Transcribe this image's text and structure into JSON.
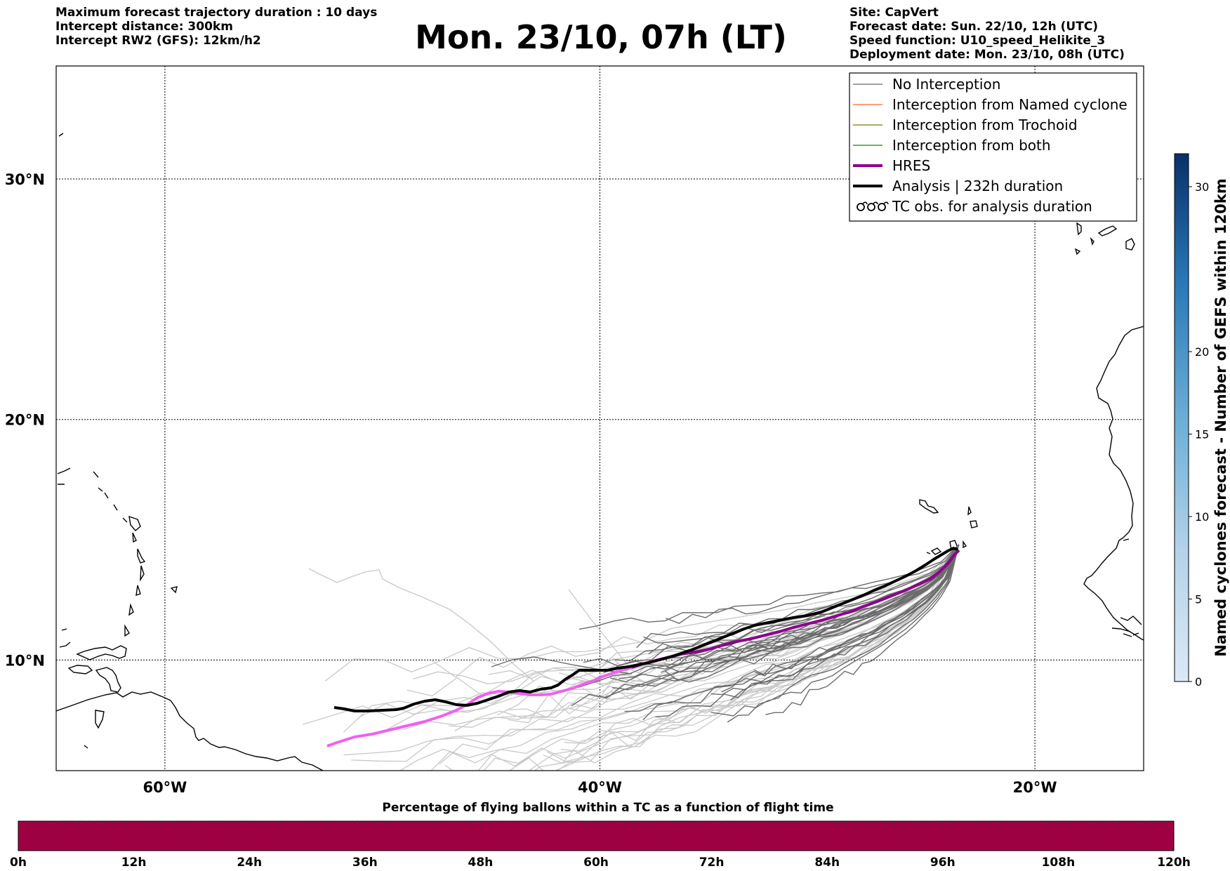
{
  "header_left": [
    "Maximum forecast trajectory duration : 10 days",
    "Intercept distance: 300km",
    "Intercept RW2 (GFS):  12km/h2"
  ],
  "title": "Mon. 23/10, 07h (LT)",
  "header_right": [
    "Site: CapVert",
    "Forecast date: Sun. 22/10, 12h (UTC)",
    "Speed function: U10_speed_Helikite_3",
    "Deployment date: Mon. 23/10, 08h (UTC)"
  ],
  "map": {
    "lon_range": [
      -65,
      -15
    ],
    "lat_range": [
      5.4,
      34.7
    ],
    "lat_ticks": [
      {
        "value": 30,
        "label": "30°N"
      },
      {
        "value": 20,
        "label": "20°N"
      },
      {
        "value": 10,
        "label": "10°N"
      }
    ],
    "lon_ticks": [
      {
        "value": -60,
        "label": "60°W"
      },
      {
        "value": -40,
        "label": "40°W"
      },
      {
        "value": -20,
        "label": "20°W"
      }
    ],
    "gridlines": "dotted",
    "launch_site": {
      "lon": -23.5,
      "lat": 14.8
    }
  },
  "legend": {
    "placement": "top-right",
    "items": [
      {
        "label": "No Interception",
        "color": "#808080",
        "style": "thin-line"
      },
      {
        "label": "Interception from Named cyclone",
        "color": "#ff7f50",
        "style": "thin-line"
      },
      {
        "label": "Interception from Trochoid",
        "color": "#9a8a30",
        "style": "thin-line"
      },
      {
        "label": "Interception from both",
        "color": "#2ca02c",
        "style": "thin-line"
      },
      {
        "label": "HRES",
        "color": "#8b008b",
        "style": "thick-line"
      },
      {
        "label": "Analysis | 232h duration",
        "color": "#000000",
        "style": "thick-line"
      },
      {
        "label": "TC obs. for analysis duration",
        "color": "#000000",
        "style": "cyclone-symbols"
      }
    ]
  },
  "colorbar_right": {
    "label": "Named cyclones forecast - Number of GEFS within 120km",
    "ticks": [
      "0",
      "5",
      "10",
      "15",
      "20",
      "30"
    ],
    "range": [
      0,
      32
    ]
  },
  "colorbar_bottom": {
    "title": "Percentage of flying ballons within a TC as a function of flight time",
    "ticks": [
      "0h",
      "12h",
      "24h",
      "36h",
      "48h",
      "60h",
      "72h",
      "84h",
      "96h",
      "108h",
      "120h"
    ],
    "fill_color": "#9e0142"
  },
  "colors": {
    "hres_pink": "#f060f0",
    "hres_purple": "#8b008b",
    "analysis": "#000000",
    "ensemble_dark": "#6b6b6b",
    "ensemble_light": "#c8c8c8"
  }
}
